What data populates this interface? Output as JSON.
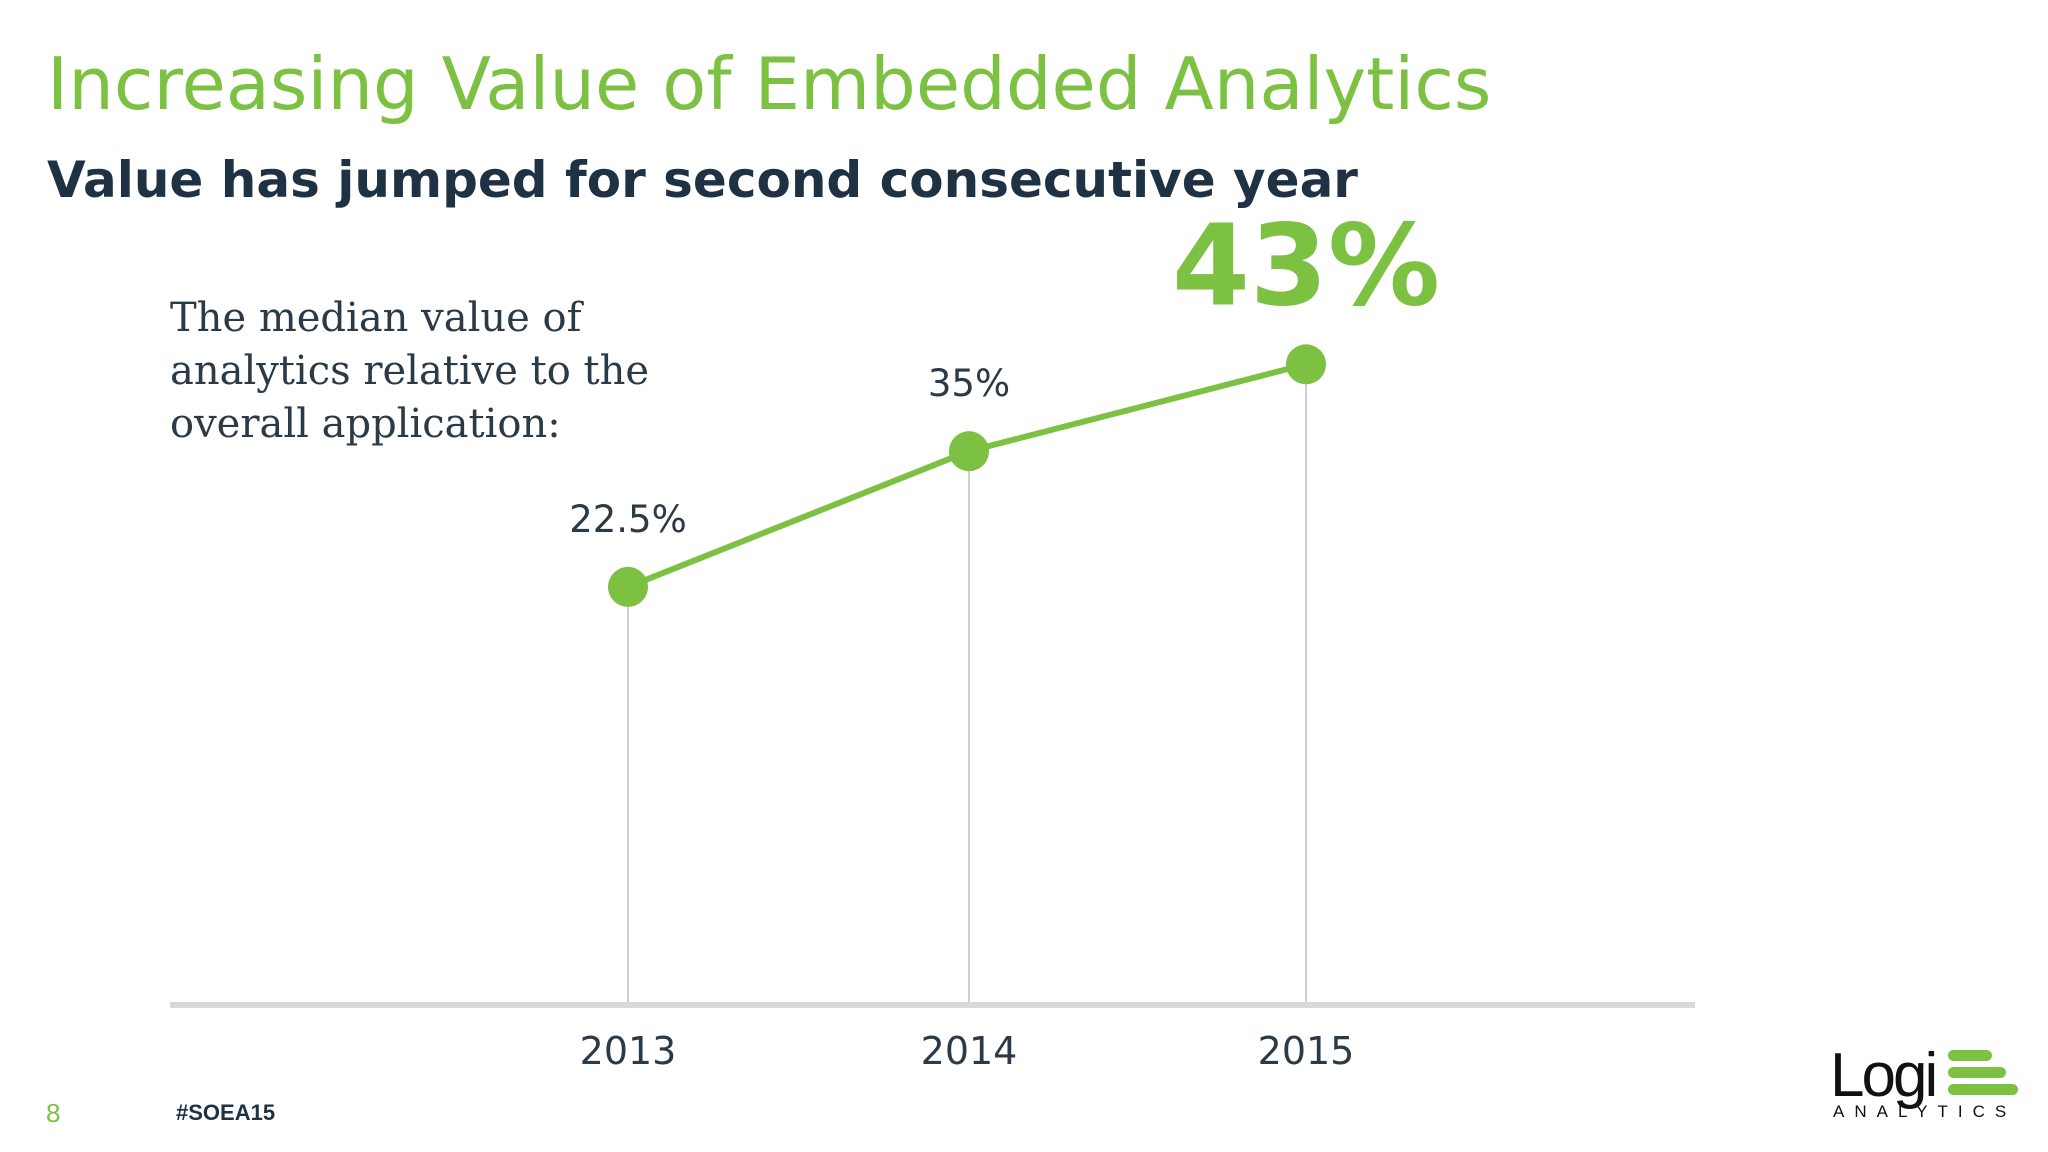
{
  "slide": {
    "title": "Increasing Value of Embedded Analytics",
    "subtitle": "Value has jumped for second consecutive year",
    "caption": "The median value of analytics relative to the overall application:",
    "page_number": "8",
    "hashtag": "#SOEA15"
  },
  "logo": {
    "word": "Logi",
    "tagline": "ANALYTICS"
  },
  "colors": {
    "accent": "#7cc142",
    "dark_text": "#1f3243",
    "axis": "#d9d9d9",
    "drop_line": "#cfcfcf"
  },
  "chart_data": {
    "type": "line",
    "title": "",
    "xlabel": "",
    "ylabel": "",
    "categories": [
      "2013",
      "2014",
      "2015"
    ],
    "series": [
      {
        "values": [
          22.5,
          35,
          43
        ],
        "labels": [
          "22.5%",
          "35%",
          "43%"
        ]
      }
    ],
    "ylim": [
      -16,
      48
    ],
    "grid": false,
    "legend": "none",
    "drop_lines": true,
    "highlight_last_label": true
  }
}
